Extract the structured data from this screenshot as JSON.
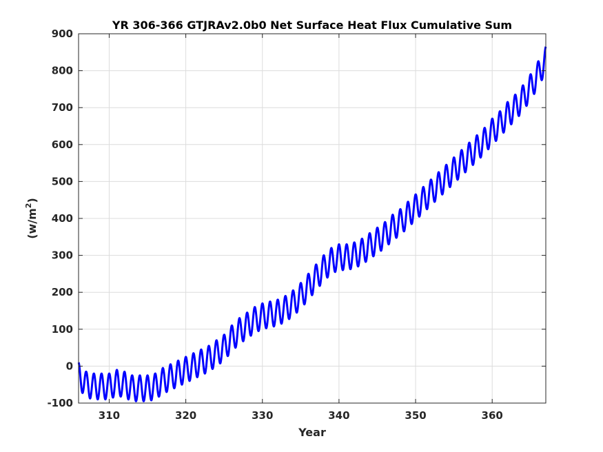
{
  "chart_data": {
    "type": "line",
    "title": "YR 306-366 GTJRAv2.0b0 Net Surface Heat Flux  Cumulative Sum",
    "xlabel": "Year",
    "ylabel_main": "(w/m",
    "ylabel_sup": "2",
    "ylabel_close": ")",
    "xlim": [
      306,
      367
    ],
    "ylim": [
      -100,
      900
    ],
    "xticks": [
      310,
      320,
      330,
      340,
      350,
      360
    ],
    "yticks": [
      -100,
      0,
      100,
      200,
      300,
      400,
      500,
      600,
      700,
      800,
      900
    ],
    "grid": true,
    "line_color": "#0000ff",
    "seasonal_cycle": {
      "period_years": 1,
      "approx_peak_to_trough": 70
    },
    "series": [
      {
        "x": [
          306,
          307,
          308,
          309,
          310,
          311,
          312,
          313,
          314,
          315,
          316,
          317,
          318,
          319,
          320,
          321,
          322,
          323,
          324,
          325,
          326,
          327,
          328,
          329,
          330,
          331,
          332,
          333,
          334,
          335,
          336,
          337,
          338,
          339,
          340,
          341,
          342,
          343,
          344,
          345,
          346,
          347,
          348,
          349,
          350,
          351,
          352,
          353,
          354,
          355,
          356,
          357,
          358,
          359,
          360,
          361,
          362,
          363,
          364,
          365,
          366,
          367
        ],
        "values": [
          -25,
          -50,
          -55,
          -55,
          -55,
          -45,
          -50,
          -60,
          -60,
          -60,
          -55,
          -40,
          -30,
          -20,
          -10,
          0,
          10,
          20,
          35,
          50,
          75,
          95,
          110,
          125,
          135,
          140,
          145,
          155,
          170,
          190,
          215,
          240,
          265,
          285,
          295,
          295,
          300,
          310,
          325,
          340,
          355,
          375,
          390,
          410,
          430,
          450,
          470,
          490,
          510,
          530,
          550,
          570,
          590,
          610,
          635,
          655,
          680,
          700,
          725,
          755,
          790,
          830
        ]
      }
    ]
  }
}
